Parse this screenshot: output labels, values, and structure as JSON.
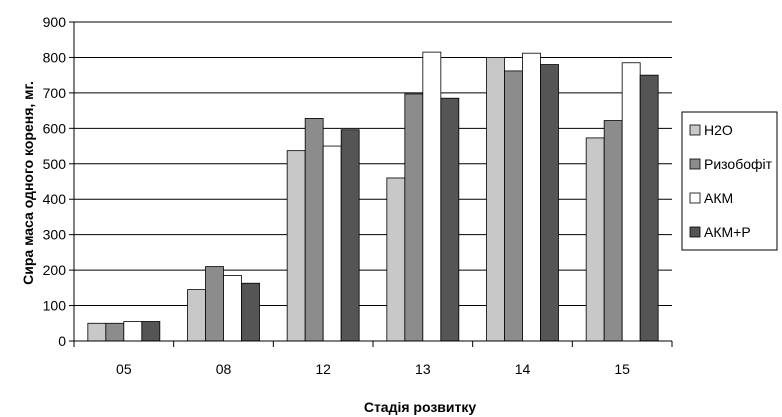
{
  "chart_data": {
    "type": "bar",
    "title": "",
    "xlabel": "Стадія розвитку",
    "ylabel": "Сира маса одного кореня, мг.",
    "categories": [
      "05",
      "08",
      "12",
      "13",
      "14",
      "15"
    ],
    "ylim": [
      0,
      900
    ],
    "yticks": [
      0,
      100,
      200,
      300,
      400,
      500,
      600,
      700,
      800,
      900
    ],
    "grid": true,
    "legend": "right",
    "series": [
      {
        "name": "H2O",
        "color": "#c8c8c8",
        "values": [
          50,
          145,
          537,
          460,
          800,
          573
        ]
      },
      {
        "name": "Ризобофіт",
        "color": "#8c8c8c",
        "values": [
          50,
          210,
          628,
          697,
          762,
          622
        ]
      },
      {
        "name": "АКМ",
        "color": "#ffffff",
        "values": [
          55,
          185,
          550,
          815,
          812,
          785
        ]
      },
      {
        "name": "АКМ+Р",
        "color": "#555555",
        "values": [
          55,
          163,
          596,
          685,
          780,
          750
        ]
      }
    ]
  }
}
